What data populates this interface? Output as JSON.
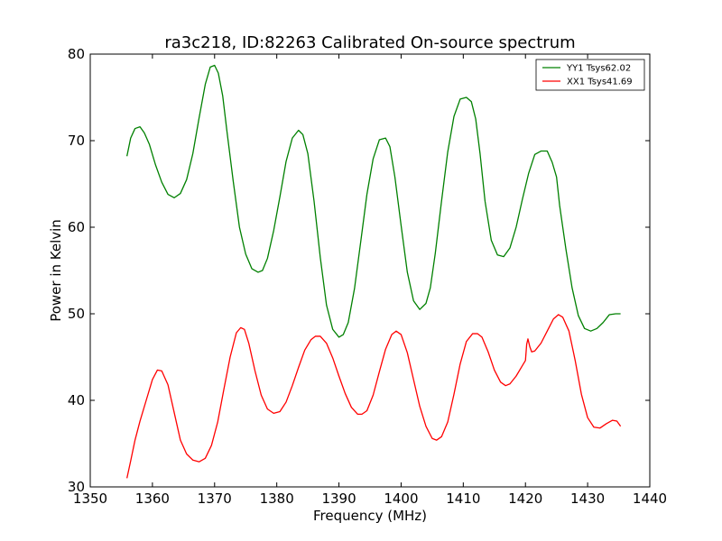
{
  "chart_data": {
    "type": "line",
    "title": "ra3c218, ID:82263 Calibrated On-source spectrum",
    "xlabel": "Frequency (MHz)",
    "ylabel": "Power in Kelvin",
    "xlim": [
      1350,
      1440
    ],
    "ylim": [
      30,
      80
    ],
    "xticks": [
      1350,
      1360,
      1370,
      1380,
      1390,
      1400,
      1410,
      1420,
      1430,
      1440
    ],
    "yticks": [
      30,
      40,
      50,
      60,
      70,
      80
    ],
    "xtick_labels": [
      "1350",
      "1360",
      "1370",
      "1380",
      "1390",
      "1400",
      "1410",
      "1420",
      "1430",
      "1440"
    ],
    "ytick_labels": [
      "30",
      "40",
      "50",
      "60",
      "70",
      "80"
    ],
    "grid": false,
    "legend_position": "top-right",
    "series": [
      {
        "name": "YY1 Tsys62.02",
        "color": "#008000",
        "x": [
          1355.9,
          1356.5,
          1357.2,
          1358.0,
          1358.7,
          1359.5,
          1360.5,
          1361.5,
          1362.5,
          1363.5,
          1364.5,
          1365.5,
          1366.5,
          1367.5,
          1368.5,
          1369.3,
          1370.0,
          1370.6,
          1371.3,
          1372.0,
          1373.0,
          1374.0,
          1375.0,
          1376.0,
          1377.0,
          1377.7,
          1378.5,
          1379.5,
          1380.5,
          1381.5,
          1382.5,
          1383.5,
          1384.2,
          1385.0,
          1386.0,
          1387.0,
          1388.0,
          1389.0,
          1390.0,
          1390.7,
          1391.5,
          1392.5,
          1393.5,
          1394.5,
          1395.5,
          1396.5,
          1397.5,
          1398.2,
          1399.0,
          1400.0,
          1401.0,
          1402.0,
          1403.0,
          1404.0,
          1404.7,
          1405.5,
          1406.5,
          1407.5,
          1408.5,
          1409.5,
          1410.5,
          1411.3,
          1412.0,
          1412.7,
          1413.5,
          1414.5,
          1415.5,
          1416.5,
          1417.5,
          1418.5,
          1419.5,
          1420.5,
          1421.5,
          1422.5,
          1423.5,
          1424.3,
          1425.0,
          1425.5,
          1426.5,
          1427.5,
          1428.5,
          1429.5,
          1430.5,
          1431.5,
          1432.5,
          1433.5,
          1434.5,
          1435.3
        ],
        "y": [
          68.2,
          70.3,
          71.4,
          71.6,
          70.9,
          69.6,
          67.2,
          65.2,
          63.8,
          63.4,
          63.9,
          65.5,
          68.5,
          72.6,
          76.5,
          78.5,
          78.7,
          77.8,
          75.2,
          71.0,
          65.3,
          60.0,
          56.9,
          55.2,
          54.8,
          55.0,
          56.4,
          59.6,
          63.5,
          67.6,
          70.3,
          71.2,
          70.7,
          68.5,
          63.0,
          56.5,
          51.0,
          48.2,
          47.3,
          47.6,
          49.0,
          52.9,
          58.3,
          63.8,
          67.9,
          70.1,
          70.3,
          69.3,
          65.8,
          60.2,
          54.8,
          51.5,
          50.5,
          51.2,
          53.0,
          57.0,
          63.0,
          68.7,
          72.8,
          74.8,
          75.0,
          74.5,
          72.5,
          68.5,
          63.0,
          58.5,
          56.8,
          56.6,
          57.6,
          60.0,
          63.2,
          66.2,
          68.4,
          68.8,
          68.8,
          67.5,
          65.8,
          62.5,
          57.5,
          53.0,
          49.8,
          48.3,
          48.0,
          48.3,
          49.0,
          49.9,
          50.0,
          50.0
        ]
      },
      {
        "name": "XX1 Tsys41.69",
        "color": "#ff0000",
        "x": [
          1355.9,
          1356.5,
          1357.2,
          1358.0,
          1359.0,
          1360.0,
          1360.8,
          1361.5,
          1362.5,
          1363.5,
          1364.5,
          1365.5,
          1366.5,
          1367.5,
          1368.5,
          1369.5,
          1370.5,
          1371.5,
          1372.5,
          1373.5,
          1374.2,
          1374.8,
          1375.5,
          1376.5,
          1377.5,
          1378.5,
          1379.5,
          1380.5,
          1381.5,
          1382.5,
          1383.5,
          1384.5,
          1385.5,
          1386.2,
          1387.0,
          1388.0,
          1389.0,
          1390.0,
          1391.0,
          1392.0,
          1393.0,
          1393.7,
          1394.5,
          1395.5,
          1396.5,
          1397.5,
          1398.5,
          1399.2,
          1400.0,
          1401.0,
          1402.0,
          1403.0,
          1404.0,
          1405.0,
          1405.7,
          1406.5,
          1407.5,
          1408.5,
          1409.5,
          1410.5,
          1411.5,
          1412.3,
          1413.0,
          1414.0,
          1415.0,
          1416.0,
          1416.8,
          1417.5,
          1418.5,
          1419.5,
          1420.0,
          1420.2,
          1420.4,
          1420.7,
          1421.0,
          1421.5,
          1422.5,
          1423.5,
          1424.5,
          1425.3,
          1426.0,
          1427.0,
          1428.0,
          1429.0,
          1430.0,
          1431.0,
          1432.0,
          1433.0,
          1434.0,
          1434.7,
          1435.3
        ],
        "y": [
          31.0,
          33.0,
          35.4,
          37.6,
          40.0,
          42.4,
          43.5,
          43.4,
          41.8,
          38.6,
          35.4,
          33.8,
          33.1,
          32.9,
          33.3,
          34.8,
          37.5,
          41.3,
          45.0,
          47.8,
          48.4,
          48.2,
          46.6,
          43.4,
          40.6,
          39.0,
          38.5,
          38.7,
          39.8,
          41.7,
          43.8,
          45.8,
          47.0,
          47.4,
          47.4,
          46.6,
          44.9,
          42.8,
          40.8,
          39.2,
          38.4,
          38.4,
          38.8,
          40.6,
          43.3,
          45.9,
          47.6,
          48.0,
          47.6,
          45.5,
          42.4,
          39.3,
          37.0,
          35.6,
          35.4,
          35.8,
          37.5,
          40.7,
          44.2,
          46.8,
          47.7,
          47.7,
          47.3,
          45.6,
          43.5,
          42.1,
          41.7,
          41.9,
          42.8,
          44.0,
          44.6,
          46.5,
          47.1,
          46.2,
          45.6,
          45.7,
          46.6,
          48.0,
          49.4,
          49.9,
          49.6,
          48.0,
          44.6,
          40.7,
          38.0,
          36.9,
          36.8,
          37.3,
          37.7,
          37.6,
          37.0
        ]
      }
    ]
  }
}
